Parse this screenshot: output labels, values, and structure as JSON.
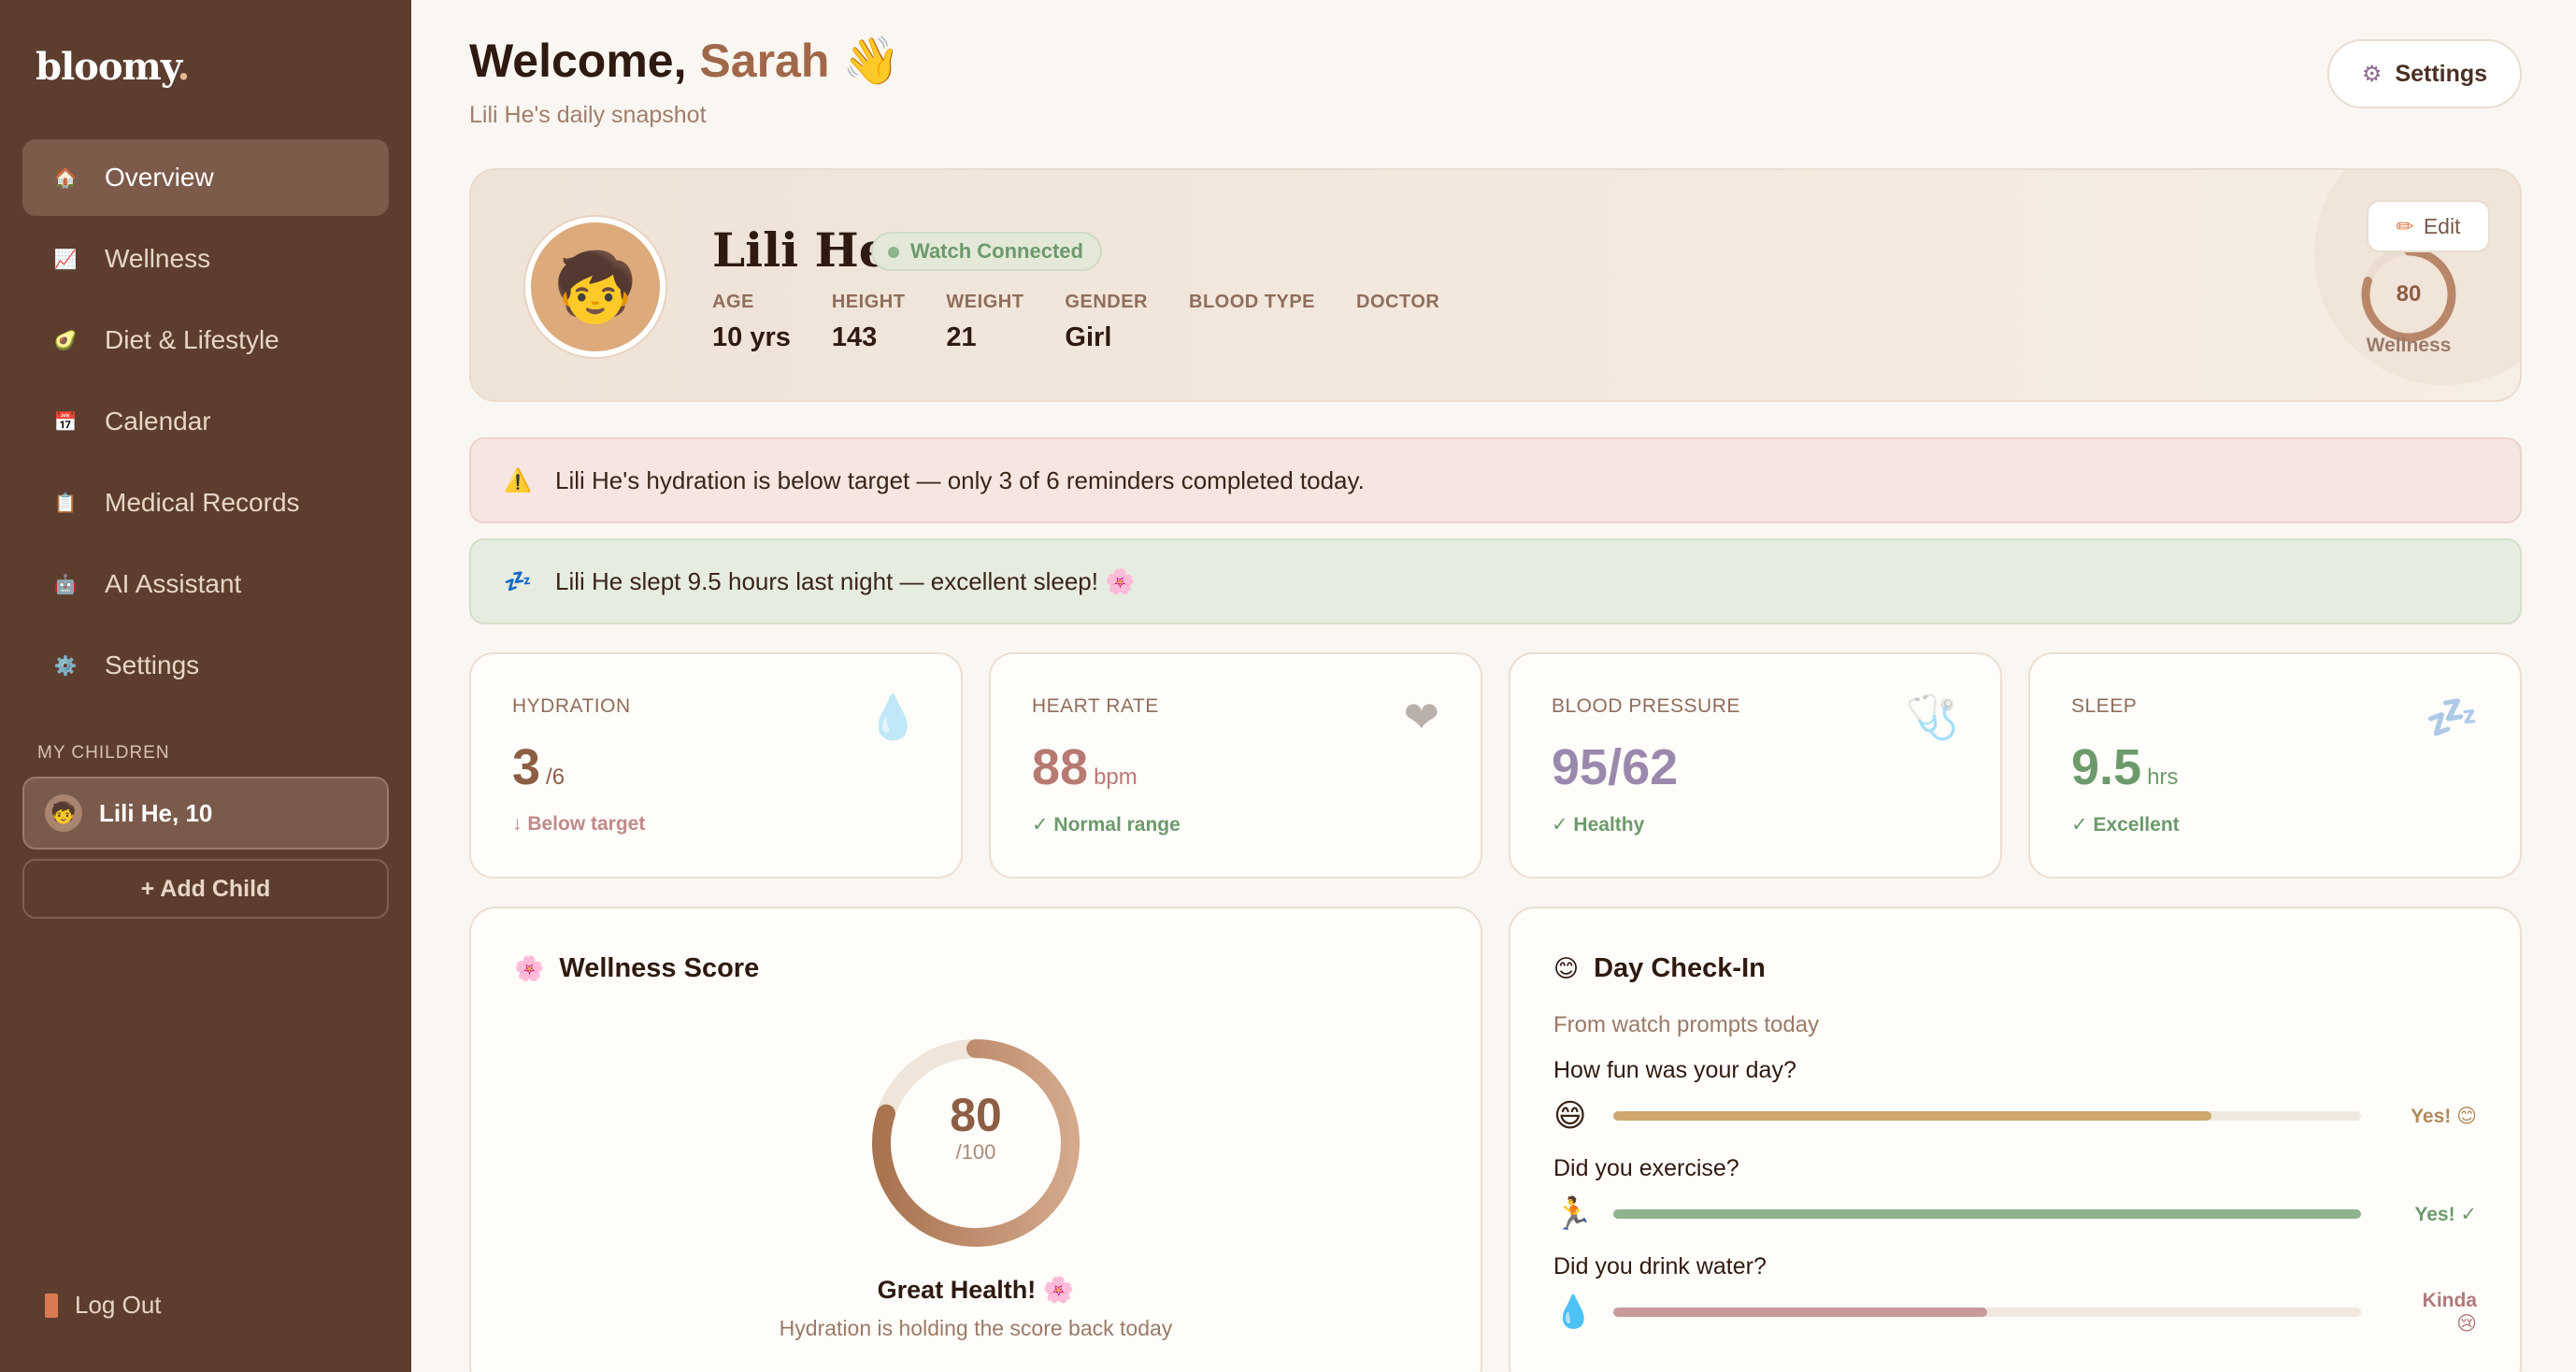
{
  "sidebar": {
    "logo": "bloomy",
    "logo_dot": ".",
    "nav": [
      {
        "label": "Overview",
        "icon": "🏠"
      },
      {
        "label": "Wellness",
        "icon": "📈"
      },
      {
        "label": "Diet & Lifestyle",
        "icon": "🥑"
      },
      {
        "label": "Calendar",
        "icon": "📅"
      },
      {
        "label": "Medical Records",
        "icon": "📋"
      },
      {
        "label": "AI Assistant",
        "icon": "🤖"
      },
      {
        "label": "Settings",
        "icon": "⚙️"
      }
    ],
    "children_label": "MY CHILDREN",
    "child": {
      "label": "Lili He, 10",
      "icon": "🧒"
    },
    "add_child": "+ Add Child",
    "logout": "Log Out"
  },
  "header": {
    "welcome_prefix": "Welcome,",
    "user_name": "Sarah",
    "wave": "👋",
    "subtitle": "Lili He's daily snapshot",
    "settings_icon": "⚙",
    "settings_label": "Settings"
  },
  "profile": {
    "avatar": "🧒",
    "name": "Lili He",
    "watch_status": "Watch Connected",
    "stats": [
      {
        "label": "AGE",
        "value": "10 yrs"
      },
      {
        "label": "HEIGHT",
        "value": "143"
      },
      {
        "label": "WEIGHT",
        "value": "21"
      },
      {
        "label": "GENDER",
        "value": "Girl"
      },
      {
        "label": "BLOOD TYPE",
        "value": ""
      },
      {
        "label": "DOCTOR",
        "value": ""
      }
    ],
    "edit_icon": "✏",
    "edit_label": "Edit",
    "wellness_score": "80",
    "wellness_fraction": 0.8,
    "wellness_label": "Wellness"
  },
  "alerts": {
    "warning_icon": "⚠️",
    "warning_text": "Lili He's hydration is below target — only 3 of 6 reminders completed today.",
    "sleep_icon": "💤",
    "sleep_text": "Lili He slept 9.5 hours last night — excellent sleep! 🌸"
  },
  "metrics": [
    {
      "label": "HYDRATION",
      "value": "3",
      "unit": "/6",
      "status": "↓ Below target",
      "icon": "💧",
      "value_color": "#8d5e44",
      "status_color": "#c08a8a"
    },
    {
      "label": "HEART RATE",
      "value": "88",
      "unit": "bpm",
      "status": "✓ Normal range",
      "icon": "❤",
      "value_color": "#b77a72",
      "status_color": "#6c9a6c"
    },
    {
      "label": "BLOOD PRESSURE",
      "value": "95/62",
      "unit": "",
      "status": "✓ Healthy",
      "icon": "🩺",
      "value_color": "#9b89ad",
      "status_color": "#6c9a6c"
    },
    {
      "label": "SLEEP",
      "value": "9.5",
      "unit": "hrs",
      "status": "✓ Excellent",
      "icon": "💤",
      "value_color": "#6c9a6c",
      "status_color": "#6c9a6c"
    }
  ],
  "wellness_panel": {
    "icon": "🌸",
    "title": "Wellness Score",
    "score": "80",
    "score_max": "/100",
    "score_fraction": 0.8,
    "status": "Great Health! 🌸",
    "note": "Hydration is holding the score back today"
  },
  "checkin_panel": {
    "icon": "😊",
    "title": "Day Check-In",
    "subtitle": "From watch prompts today",
    "questions": [
      {
        "question": "How fun was your day?",
        "emoji": "😄",
        "answer": "Yes! 😊",
        "fraction": 0.8,
        "color": "#cfa86f",
        "answer_color": "#b08a5a"
      },
      {
        "question": "Did you exercise?",
        "emoji": "🏃",
        "answer": "Yes! ✓",
        "fraction": 1.0,
        "color": "#8fb38d",
        "answer_color": "#6c9a6c"
      },
      {
        "question": "Did you drink water?",
        "emoji": "💧",
        "answer": "Kinda 😢",
        "fraction": 0.5,
        "color": "#c89a9a",
        "answer_color": "#b07a7a"
      }
    ]
  },
  "colors": {
    "sidebar_bg": "#5c3d2e",
    "accent": "#a0684a",
    "page_bg": "#faf6f1"
  }
}
